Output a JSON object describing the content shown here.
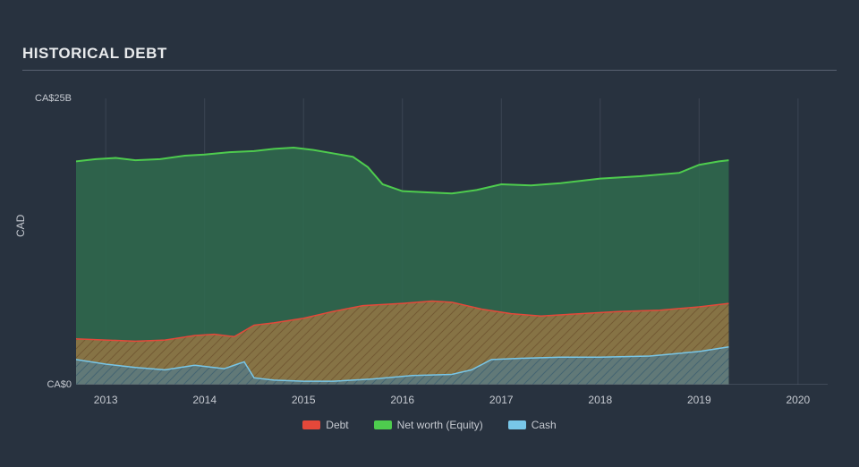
{
  "title": "HISTORICAL DEBT",
  "chart": {
    "type": "area",
    "background_color": "#28323f",
    "plot_bg_color": "#28323f",
    "grid_color": "#3b4553",
    "axis_line_color": "#596271",
    "label_color": "#c6cad1",
    "label_fontsize": 12,
    "tick_fontsize": 11,
    "title_fontsize": 17,
    "title_color": "#e8eaec",
    "ylabel": "CAD",
    "ylim": [
      0,
      25
    ],
    "yticks": [
      {
        "v": 0,
        "label": "CA$0"
      },
      {
        "v": 25,
        "label": "CA$25B"
      }
    ],
    "xlim": [
      2012.7,
      2020.3
    ],
    "xticks": [
      {
        "v": 2013,
        "label": "2013"
      },
      {
        "v": 2014,
        "label": "2014"
      },
      {
        "v": 2015,
        "label": "2015"
      },
      {
        "v": 2016,
        "label": "2016"
      },
      {
        "v": 2017,
        "label": "2017"
      },
      {
        "v": 2018,
        "label": "2018"
      },
      {
        "v": 2019,
        "label": "2019"
      },
      {
        "v": 2020,
        "label": "2020"
      }
    ],
    "series": [
      {
        "name": "Net worth (Equity)",
        "line_color": "#4ecc4e",
        "fill_color": "#2f6b4e",
        "fill_opacity": 0.85,
        "line_width": 2,
        "x": [
          2012.7,
          2012.9,
          2013.1,
          2013.3,
          2013.55,
          2013.8,
          2014.0,
          2014.25,
          2014.5,
          2014.7,
          2014.9,
          2015.1,
          2015.3,
          2015.5,
          2015.65,
          2015.8,
          2016.0,
          2016.25,
          2016.5,
          2016.75,
          2017.0,
          2017.3,
          2017.6,
          2018.0,
          2018.4,
          2018.8,
          2019.0,
          2019.2,
          2019.3
        ],
        "values": [
          19.5,
          19.7,
          19.8,
          19.6,
          19.7,
          20.0,
          20.1,
          20.3,
          20.4,
          20.6,
          20.7,
          20.5,
          20.2,
          19.9,
          19.0,
          17.5,
          16.9,
          16.8,
          16.7,
          17.0,
          17.5,
          17.4,
          17.6,
          18.0,
          18.2,
          18.5,
          19.2,
          19.5,
          19.6
        ]
      },
      {
        "name": "Debt",
        "line_color": "#e4483a",
        "fill_color": "#a27843",
        "fill_opacity": 0.75,
        "fill_hatch": true,
        "hatch_color": "#6b4f2c",
        "line_width": 1.5,
        "x": [
          2012.7,
          2013.0,
          2013.3,
          2013.6,
          2013.9,
          2014.1,
          2014.3,
          2014.5,
          2014.7,
          2015.0,
          2015.3,
          2015.6,
          2016.0,
          2016.3,
          2016.5,
          2016.8,
          2017.1,
          2017.4,
          2017.8,
          2018.2,
          2018.6,
          2019.0,
          2019.3
        ],
        "values": [
          4.0,
          3.9,
          3.8,
          3.9,
          4.3,
          4.4,
          4.2,
          5.2,
          5.4,
          5.8,
          6.4,
          6.9,
          7.1,
          7.3,
          7.2,
          6.6,
          6.2,
          6.0,
          6.2,
          6.4,
          6.5,
          6.8,
          7.1
        ]
      },
      {
        "name": "Cash",
        "line_color": "#78c6e8",
        "fill_color": "#4d7d93",
        "fill_opacity": 0.65,
        "fill_hatch": true,
        "hatch_color": "#3a5e70",
        "line_width": 1.5,
        "x": [
          2012.7,
          2013.0,
          2013.3,
          2013.6,
          2013.9,
          2014.2,
          2014.4,
          2014.5,
          2014.7,
          2015.0,
          2015.3,
          2015.7,
          2016.1,
          2016.5,
          2016.7,
          2016.9,
          2017.2,
          2017.6,
          2018.0,
          2018.5,
          2019.0,
          2019.3
        ],
        "values": [
          2.2,
          1.8,
          1.5,
          1.3,
          1.7,
          1.4,
          2.0,
          0.6,
          0.4,
          0.3,
          0.3,
          0.5,
          0.8,
          0.9,
          1.3,
          2.2,
          2.3,
          2.4,
          2.4,
          2.5,
          2.9,
          3.3
        ]
      }
    ],
    "legend": {
      "position": "bottom-center",
      "items": [
        {
          "label": "Debt",
          "color": "#e4483a"
        },
        {
          "label": "Net worth (Equity)",
          "color": "#4ecc4e"
        },
        {
          "label": "Cash",
          "color": "#78c6e8"
        }
      ]
    }
  }
}
